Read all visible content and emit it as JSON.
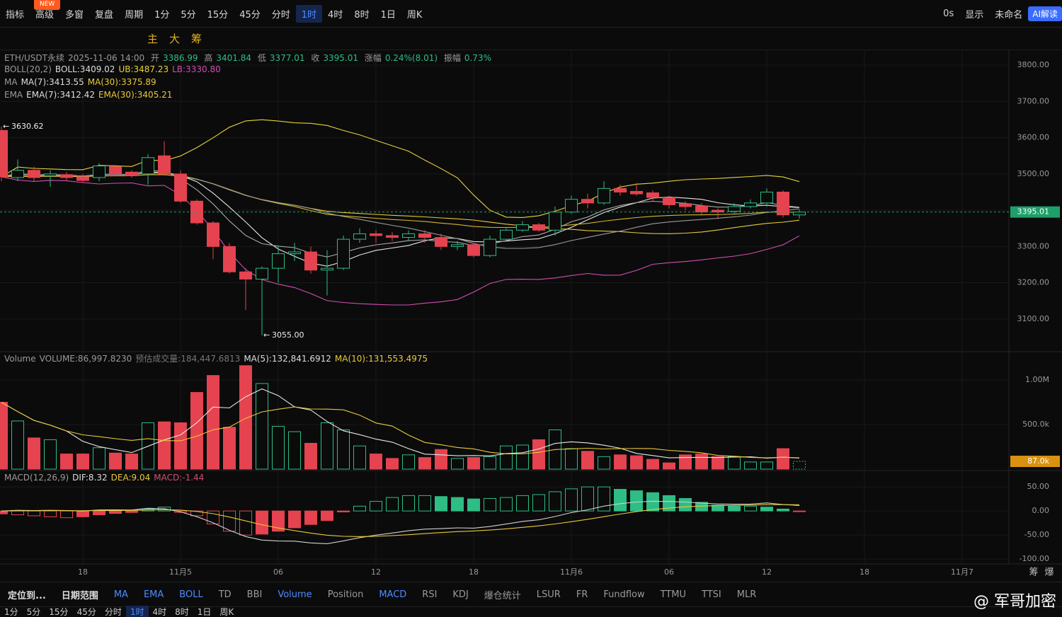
{
  "top_toolbar": {
    "new_badge": "NEW",
    "items": [
      "指标",
      "高级",
      "多窗",
      "复盘",
      "周期",
      "1分",
      "5分",
      "15分",
      "45分",
      "分时",
      "1时",
      "4时",
      "8时",
      "1日",
      "周K"
    ],
    "active_index": 10,
    "right": [
      "0s",
      "显示",
      "未命名",
      "AI解读"
    ]
  },
  "draw_toolbar": [
    "主",
    "大",
    "筹"
  ],
  "legends": {
    "main": {
      "symbol": "ETH/USDT永续",
      "time": "2025-11-06 14:00",
      "open": "开",
      "high": "高",
      "low": "低",
      "close": "收",
      "change_label": "涨幅",
      "change": "0.24%(8.01)",
      "amp_label": "振幅",
      "amp": "0.73%"
    },
    "boll": [
      "BOLL(20,2)",
      "BOLL:3409.02",
      "UB:3487.23",
      "LB:3330.80"
    ],
    "ma": [
      "MA",
      "MA(7):3413.55",
      "MA(30):3375.89"
    ],
    "ema": [
      "EMA",
      "EMA(7):3412.42",
      "EMA(30):3405.21"
    ],
    "volume": [
      "Volume",
      "VOLUME:86,997.8230",
      "预估成交量:184,447.6813",
      "MA(5):132,841.6912",
      "MA(10):131,553.4975"
    ],
    "macd": [
      "MACD(12,26,9)",
      "DIF:8.32",
      "DEA:9.04",
      "MACD:-1.44"
    ]
  },
  "chart_data": [
    {
      "type": "candlestick",
      "up_color": "#2ebd85",
      "down_color": "#e5434f",
      "grid": true,
      "ylim": [
        3010,
        3843
      ],
      "xlim": [
        -0.087,
        61.87
      ],
      "yticks": [
        {
          "value": 3800,
          "label": "3800.00"
        },
        {
          "value": 3700,
          "label": "3700.00"
        },
        {
          "value": 3600,
          "label": "3600.00"
        },
        {
          "value": 3500,
          "label": "3500.00"
        },
        {
          "value": 3400,
          "label": "3400.00"
        },
        {
          "value": 3300,
          "label": "3300.00"
        },
        {
          "value": 3200,
          "label": "3200.00"
        },
        {
          "value": 3100,
          "label": "3100.00"
        }
      ],
      "xticks": [
        {
          "value": 5,
          "label": "18"
        },
        {
          "value": 11,
          "label": "11月5"
        },
        {
          "value": 17,
          "label": "06"
        },
        {
          "value": 23,
          "label": "12"
        },
        {
          "value": 29,
          "label": "18"
        },
        {
          "value": 35,
          "label": "11月6"
        },
        {
          "value": 41,
          "label": "06"
        },
        {
          "value": 47,
          "label": "12"
        },
        {
          "value": 53,
          "label": "18"
        },
        {
          "value": 59,
          "label": "11月7"
        }
      ],
      "open": [
        3620,
        3490,
        3510,
        3495,
        3498,
        3492,
        3490,
        3520,
        3505,
        3500,
        3550,
        3500,
        3425,
        3365,
        3300,
        3230,
        3210,
        3240,
        3280,
        3285,
        3235,
        3240,
        3320,
        3335,
        3330,
        3325,
        3335,
        3325,
        3300,
        3305,
        3275,
        3320,
        3345,
        3360,
        3345,
        3395,
        3430,
        3420,
        3460,
        3452,
        3448,
        3435,
        3418,
        3412,
        3400,
        3397,
        3410,
        3420,
        3450,
        3386.99
      ],
      "high": [
        3630.62,
        3540,
        3520,
        3510,
        3505,
        3500,
        3530,
        3525,
        3510,
        3555,
        3590,
        3510,
        3430,
        3370,
        3310,
        3240,
        3245,
        3300,
        3310,
        3300,
        3290,
        3330,
        3350,
        3345,
        3340,
        3345,
        3345,
        3335,
        3315,
        3310,
        3330,
        3350,
        3370,
        3365,
        3410,
        3440,
        3445,
        3480,
        3470,
        3475,
        3455,
        3440,
        3425,
        3420,
        3405,
        3420,
        3430,
        3460,
        3455,
        3401.84
      ],
      "low": [
        3480,
        3480,
        3480,
        3465,
        3480,
        3475,
        3480,
        3495,
        3490,
        3470,
        3495,
        3420,
        3360,
        3265,
        3225,
        3125,
        3055,
        3200,
        3260,
        3225,
        3165,
        3235,
        3310,
        3310,
        3315,
        3315,
        3310,
        3290,
        3290,
        3270,
        3270,
        3315,
        3340,
        3340,
        3330,
        3390,
        3405,
        3415,
        3440,
        3440,
        3425,
        3405,
        3400,
        3385,
        3375,
        3390,
        3405,
        3410,
        3380,
        3377.01
      ],
      "close": [
        3492,
        3510,
        3490,
        3500,
        3490,
        3482,
        3522,
        3500,
        3495,
        3545,
        3500,
        3425,
        3365,
        3300,
        3230,
        3210,
        3240,
        3280,
        3285,
        3235,
        3240,
        3320,
        3335,
        3330,
        3325,
        3335,
        3325,
        3300,
        3305,
        3275,
        3320,
        3345,
        3360,
        3345,
        3395,
        3430,
        3420,
        3460,
        3450,
        3445,
        3435,
        3415,
        3410,
        3395,
        3395,
        3410,
        3420,
        3450,
        3386.99,
        3395.01
      ],
      "min_index": 16,
      "min_label": "3055.00",
      "max_index": 0,
      "overlays": [
        {
          "kind": "sma",
          "period": 7,
          "color": "#e6e6e6"
        },
        {
          "kind": "sma",
          "period": 30,
          "color": "#e8c93a"
        },
        {
          "kind": "ema",
          "period": 7,
          "color": "#a8a8a8"
        },
        {
          "kind": "ema",
          "period": 30,
          "color": "#d7b52c"
        },
        {
          "kind": "boll",
          "period": 20,
          "k": 2,
          "colors": [
            "#9a9a9a",
            "#e6d23a",
            "#d24fb1"
          ]
        }
      ],
      "price_tag_color": "#1f9f6a"
    },
    {
      "type": "bar",
      "ylim": [
        0,
        1317000
      ],
      "yticks": [
        {
          "value": 1000000,
          "label": "1.00M"
        },
        {
          "value": 500000,
          "label": "500.0k"
        }
      ],
      "values": [
        750000,
        540000,
        350000,
        330000,
        170000,
        170000,
        240000,
        180000,
        170000,
        520000,
        530000,
        520000,
        860000,
        1050000,
        470000,
        1160000,
        960000,
        480000,
        420000,
        290000,
        520000,
        440000,
        260000,
        170000,
        120000,
        160000,
        130000,
        220000,
        120000,
        130000,
        140000,
        260000,
        270000,
        330000,
        440000,
        230000,
        200000,
        140000,
        160000,
        150000,
        110000,
        70000,
        160000,
        170000,
        140000,
        140000,
        80000,
        80000,
        230000,
        86997.823
      ],
      "last_label": "87.0k",
      "tag_color": "#d9920f",
      "overlays": [
        {
          "kind": "sma",
          "period": 5,
          "color": "#e6e6e6"
        },
        {
          "kind": "sma",
          "period": 10,
          "color": "#e8c93a"
        }
      ]
    },
    {
      "type": "macd",
      "ylim": [
        -110,
        84
      ],
      "yticks": [
        {
          "value": 50,
          "label": "50.00"
        },
        {
          "value": 0,
          "label": "0.00"
        },
        {
          "value": -50,
          "label": "-50.00"
        },
        {
          "value": -100,
          "label": "-100.00"
        }
      ],
      "values": [
        -6,
        -8,
        -10,
        -12,
        -14,
        -12,
        -8,
        -5,
        -3,
        4,
        8,
        -3,
        -10,
        -27,
        -42,
        -50,
        -48,
        -42,
        -35,
        -28,
        -20,
        -2,
        10,
        20,
        28,
        32,
        32,
        30,
        28,
        25,
        26,
        28,
        32,
        34,
        40,
        46,
        50,
        50,
        45,
        42,
        38,
        32,
        26,
        18,
        12,
        10,
        10,
        8,
        4,
        -1.44
      ],
      "fast": 12,
      "slow": 26,
      "signal": 9,
      "colors": [
        "#d0d0d0",
        "#e8c93a"
      ]
    }
  ],
  "x_axis_right": [
    "筹",
    "爆"
  ],
  "bottom_toolbar": {
    "left": [
      "定位到...",
      "日期范围"
    ],
    "overlays": [
      "MA",
      "EMA",
      "BOLL",
      "TD",
      "BBI"
    ],
    "subs": [
      "Volume",
      "Position",
      "MACD",
      "RSI",
      "KDJ",
      "爆仓统计",
      "LSUR",
      "FR",
      "Fundflow",
      "TTMU",
      "TTSI",
      "MLR"
    ],
    "active_subs": [
      0,
      2
    ]
  },
  "period_row": [
    "1分",
    "5分",
    "15分",
    "45分",
    "分时",
    "1时",
    "4时",
    "8时",
    "1日",
    "周K"
  ],
  "period_row_active": 5,
  "watermark": "@ 军哥加密"
}
